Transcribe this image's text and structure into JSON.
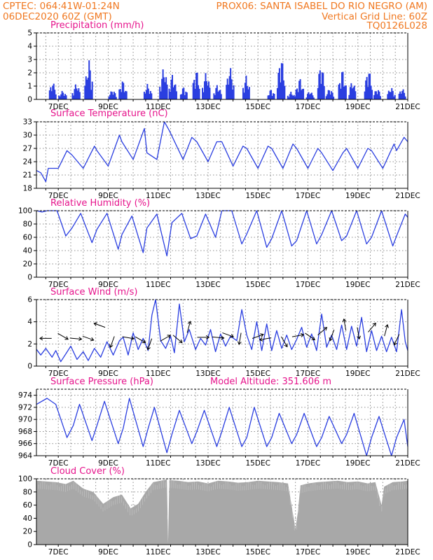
{
  "header": {
    "line1_left": "CPTEC:   064:41W-01:24N",
    "line1_right": "PROX06: SANTA ISABEL DO RIO NEGRO (AM)",
    "line2_left": "06DEC2020 60Z (GMT)",
    "line2_right": "Vertical Grid Line: 60Z",
    "line3_right": "TQ0126L028"
  },
  "colors": {
    "header_text": "#f07820",
    "panel_title": "#e6148c",
    "series_line": "#2a3ee0",
    "bar_fill": "#2a3ee0",
    "cloud_fill": "#a8a8a8",
    "grid": "#8c8c8c"
  },
  "chart_data": [
    {
      "id": "precipitation",
      "type": "bar",
      "title": "Precipitation (mm/h)",
      "ylim": [
        0,
        5
      ],
      "yticks": [
        0,
        1,
        2,
        3,
        4,
        5
      ],
      "x_range_days": [
        6.125,
        21.0
      ],
      "x_tick_labels": [
        "7DEC",
        "9DEC",
        "11DEC",
        "13DEC",
        "15DEC",
        "17DEC",
        "19DEC",
        "21DEC"
      ],
      "grid": true,
      "bursts": [
        {
          "day": 6.75,
          "peak": 1.4
        },
        {
          "day": 7.15,
          "peak": 0.7
        },
        {
          "day": 7.7,
          "peak": 1.3
        },
        {
          "day": 8.2,
          "peak": 3.1
        },
        {
          "day": 9.15,
          "peak": 0.8
        },
        {
          "day": 9.55,
          "peak": 1.5
        },
        {
          "day": 10.55,
          "peak": 1.2
        },
        {
          "day": 11.2,
          "peak": 2.6
        },
        {
          "day": 11.55,
          "peak": 2.0
        },
        {
          "day": 12.0,
          "peak": 1.0
        },
        {
          "day": 12.5,
          "peak": 2.4
        },
        {
          "day": 12.9,
          "peak": 2.2
        },
        {
          "day": 13.35,
          "peak": 1.2
        },
        {
          "day": 13.85,
          "peak": 2.6
        },
        {
          "day": 14.5,
          "peak": 1.8
        },
        {
          "day": 15.5,
          "peak": 0.8
        },
        {
          "day": 15.9,
          "peak": 3.5
        },
        {
          "day": 16.3,
          "peak": 0.6
        },
        {
          "day": 16.65,
          "peak": 1.7
        },
        {
          "day": 17.05,
          "peak": 0.7
        },
        {
          "day": 17.5,
          "peak": 2.9
        },
        {
          "day": 17.85,
          "peak": 0.9
        },
        {
          "day": 18.35,
          "peak": 2.4
        },
        {
          "day": 18.75,
          "peak": 1.5
        },
        {
          "day": 19.4,
          "peak": 2.5
        },
        {
          "day": 19.75,
          "peak": 0.9
        },
        {
          "day": 20.3,
          "peak": 1.0
        },
        {
          "day": 20.75,
          "peak": 0.9
        }
      ]
    },
    {
      "id": "surface_temperature",
      "type": "line",
      "title": "Surface Temperature (nC)",
      "ylim": [
        18,
        33
      ],
      "yticks": [
        18,
        21,
        24,
        27,
        30,
        33
      ],
      "x_range_days": [
        6.125,
        21.0
      ],
      "x_tick_labels": [
        "7DEC",
        "9DEC",
        "11DEC",
        "13DEC",
        "15DEC",
        "17DEC",
        "19DEC",
        "21DEC"
      ],
      "grid": true,
      "x": [
        6.13,
        6.3,
        6.5,
        6.6,
        7.0,
        7.35,
        7.55,
        8.0,
        8.45,
        8.55,
        9.0,
        9.45,
        9.55,
        10.0,
        10.45,
        10.55,
        10.95,
        11.25,
        11.45,
        12.0,
        12.35,
        12.55,
        13.0,
        13.35,
        13.55,
        14.0,
        14.4,
        14.55,
        15.0,
        15.4,
        15.55,
        16.0,
        16.4,
        16.55,
        17.0,
        17.4,
        17.55,
        18.0,
        18.4,
        18.55,
        19.0,
        19.4,
        19.55,
        20.0,
        20.45,
        20.55,
        20.85,
        21.0
      ],
      "y": [
        22,
        21.5,
        19.5,
        22.5,
        22.5,
        26.5,
        25.5,
        22.5,
        27.5,
        26.5,
        23,
        30,
        28.5,
        24.5,
        31.5,
        26,
        24.5,
        33,
        31,
        24.5,
        29.5,
        28.5,
        24,
        28.5,
        28.5,
        23,
        27.5,
        27,
        22.5,
        27.5,
        27,
        22.5,
        28,
        27,
        22.5,
        27,
        26,
        22,
        26,
        27,
        22.5,
        27,
        26.5,
        22.5,
        28,
        26.5,
        29.5,
        28.5
      ]
    },
    {
      "id": "relative_humidity",
      "type": "line",
      "title": "Relative Humidity (%)",
      "ylim": [
        0,
        100
      ],
      "yticks": [
        0,
        20,
        40,
        60,
        80,
        100
      ],
      "x_range_days": [
        6.125,
        21.0
      ],
      "x_tick_labels": [
        "7DEC",
        "9DEC",
        "11DEC",
        "13DEC",
        "15DEC",
        "17DEC",
        "19DEC",
        "21DEC"
      ],
      "grid": true,
      "x": [
        6.13,
        6.35,
        6.55,
        6.95,
        7.3,
        7.55,
        7.9,
        8.35,
        8.55,
        8.95,
        9.4,
        9.55,
        9.95,
        10.4,
        10.55,
        10.95,
        11.35,
        11.55,
        11.95,
        12.3,
        12.55,
        12.9,
        13.3,
        13.55,
        13.95,
        14.35,
        14.55,
        14.95,
        15.35,
        15.55,
        15.95,
        16.35,
        16.55,
        16.95,
        17.35,
        17.55,
        17.95,
        18.35,
        18.55,
        18.95,
        19.35,
        19.55,
        19.95,
        20.4,
        20.55,
        20.9,
        21.0
      ],
      "y": [
        100,
        98,
        100,
        100,
        62,
        74,
        96,
        52,
        72,
        96,
        42,
        64,
        92,
        37,
        74,
        95,
        32,
        82,
        96,
        58,
        62,
        95,
        60,
        100,
        100,
        50,
        65,
        100,
        45,
        58,
        100,
        47,
        55,
        100,
        50,
        64,
        100,
        55,
        62,
        100,
        50,
        60,
        100,
        47,
        62,
        95,
        90
      ]
    },
    {
      "id": "surface_wind",
      "type": "line",
      "title": "Surface Wind (m/s)",
      "ylim": [
        0,
        6
      ],
      "yticks": [
        0,
        2,
        4,
        6
      ],
      "x_range_days": [
        6.125,
        21.0
      ],
      "x_tick_labels": [
        "7DEC",
        "9DEC",
        "11DEC",
        "13DEC",
        "15DEC",
        "17DEC",
        "19DEC",
        "21DEC"
      ],
      "grid": true,
      "x": [
        6.13,
        6.3,
        6.5,
        6.75,
        6.9,
        7.1,
        7.3,
        7.5,
        7.75,
        8.0,
        8.2,
        8.45,
        8.7,
        8.95,
        9.2,
        9.45,
        9.6,
        9.8,
        10.0,
        10.2,
        10.4,
        10.6,
        10.75,
        10.9,
        11.1,
        11.3,
        11.5,
        11.65,
        11.85,
        12.05,
        12.25,
        12.5,
        12.7,
        12.9,
        13.1,
        13.3,
        13.5,
        13.7,
        13.9,
        14.15,
        14.35,
        14.55,
        14.75,
        14.95,
        15.15,
        15.35,
        15.55,
        15.75,
        15.95,
        16.15,
        16.35,
        16.55,
        16.75,
        16.95,
        17.15,
        17.35,
        17.55,
        17.75,
        17.95,
        18.15,
        18.35,
        18.55,
        18.75,
        18.95,
        19.15,
        19.35,
        19.55,
        19.75,
        19.95,
        20.15,
        20.35,
        20.55,
        20.75,
        20.9,
        21.0
      ],
      "y": [
        1.5,
        1.0,
        1.6,
        0.8,
        1.4,
        0.4,
        1.1,
        1.8,
        0.6,
        1.3,
        0.5,
        1.6,
        0.8,
        2.2,
        1.0,
        2.3,
        2.6,
        1.0,
        3.0,
        1.5,
        2.5,
        1.4,
        4.6,
        6.0,
        2.3,
        1.6,
        2.7,
        1.2,
        5.6,
        2.2,
        3.3,
        1.5,
        2.5,
        1.9,
        3.3,
        1.3,
        2.9,
        1.8,
        2.7,
        2.3,
        5.1,
        2.8,
        1.5,
        4.0,
        1.4,
        3.8,
        1.4,
        3.2,
        1.6,
        2.8,
        1.5,
        2.4,
        3.5,
        1.7,
        2.9,
        1.4,
        4.7,
        1.7,
        2.8,
        1.5,
        3.7,
        1.5,
        3.6,
        1.8,
        4.4,
        1.3,
        3.2,
        1.4,
        2.7,
        1.3,
        2.6,
        1.3,
        5.1,
        2.2,
        1.4
      ]
    },
    {
      "id": "surface_pressure",
      "type": "line",
      "title": "Surface Pressure (hPa)",
      "annotation": "Model Altitude: 351.606 m",
      "ylim": [
        964,
        975
      ],
      "yticks": [
        964,
        966,
        968,
        970,
        972,
        974
      ],
      "x_range_days": [
        6.125,
        21.0
      ],
      "x_tick_labels": [
        "7DEC",
        "9DEC",
        "11DEC",
        "13DEC",
        "15DEC",
        "17DEC",
        "19DEC",
        "21DEC"
      ],
      "grid": true,
      "x": [
        6.13,
        6.55,
        6.9,
        7.35,
        7.6,
        7.85,
        8.35,
        8.55,
        8.85,
        9.4,
        9.6,
        9.85,
        10.4,
        10.6,
        10.85,
        11.35,
        11.55,
        11.85,
        12.35,
        12.55,
        12.85,
        13.35,
        13.55,
        13.85,
        14.35,
        14.55,
        14.85,
        15.35,
        15.55,
        15.85,
        16.35,
        16.55,
        16.85,
        17.35,
        17.55,
        17.85,
        18.35,
        18.55,
        18.85,
        19.35,
        19.55,
        19.85,
        20.35,
        20.55,
        20.85,
        21.0
      ],
      "y": [
        972.5,
        973.5,
        972.5,
        967.0,
        969.0,
        972.5,
        966.5,
        969.0,
        973.0,
        966.0,
        968.5,
        973.5,
        965.5,
        968.5,
        972.0,
        964.5,
        967.5,
        971.5,
        966.0,
        968.0,
        971.5,
        965.5,
        968.0,
        972.0,
        965.5,
        967.0,
        972.0,
        965.5,
        967.0,
        971.0,
        966.0,
        967.5,
        971.0,
        965.5,
        967.0,
        970.5,
        966.0,
        967.5,
        971.0,
        964.0,
        967.0,
        970.5,
        964.0,
        967.0,
        970.0,
        965.5
      ]
    },
    {
      "id": "cloud_cover",
      "type": "area",
      "title": "Cloud Cover (%)",
      "ylim": [
        0,
        100
      ],
      "yticks": [
        0,
        20,
        40,
        60,
        80,
        100
      ],
      "x_range_days": [
        6.125,
        21.0
      ],
      "x_tick_labels": [
        "7DEC",
        "9DEC",
        "11DEC",
        "13DEC",
        "15DEC",
        "17DEC",
        "19DEC",
        "21DEC"
      ],
      "grid": true,
      "x": [
        6.13,
        6.5,
        6.9,
        7.3,
        7.6,
        8.0,
        8.4,
        8.8,
        9.2,
        9.55,
        9.9,
        10.2,
        10.5,
        10.8,
        11.1,
        11.35,
        11.4,
        11.45,
        11.8,
        12.2,
        12.6,
        13.0,
        13.4,
        13.8,
        14.2,
        14.6,
        15.0,
        15.4,
        15.8,
        16.2,
        16.5,
        16.6,
        16.7,
        17.0,
        17.4,
        17.8,
        18.2,
        18.6,
        19.0,
        19.4,
        19.7,
        19.95,
        20.05,
        20.4,
        20.8,
        21.0
      ],
      "y": [
        97,
        96,
        95,
        92,
        97,
        85,
        80,
        62,
        72,
        76,
        55,
        62,
        80,
        95,
        97,
        99,
        2,
        98,
        97,
        95,
        96,
        93,
        97,
        96,
        94,
        95,
        97,
        96,
        95,
        93,
        24,
        50,
        90,
        93,
        95,
        96,
        97,
        95,
        96,
        93,
        95,
        60,
        88,
        95,
        96,
        97
      ]
    }
  ],
  "wind_arrows": [
    {
      "day": 6.6,
      "y": 2.5,
      "dir": 270
    },
    {
      "day": 7.1,
      "y": 2.8,
      "dir": 120
    },
    {
      "day": 7.6,
      "y": 2.5,
      "dir": 95
    },
    {
      "day": 8.1,
      "y": 2.6,
      "dir": 110
    },
    {
      "day": 8.75,
      "y": 3.6,
      "dir": 290
    },
    {
      "day": 9.2,
      "y": 2.4,
      "dir": 200
    },
    {
      "day": 9.7,
      "y": 2.6,
      "dir": 100
    },
    {
      "day": 10.2,
      "y": 2.5,
      "dir": 120
    },
    {
      "day": 10.7,
      "y": 2.2,
      "dir": 200
    },
    {
      "day": 11.2,
      "y": 2.4,
      "dir": 60
    },
    {
      "day": 11.7,
      "y": 2.6,
      "dir": 130
    },
    {
      "day": 12.2,
      "y": 3.3,
      "dir": 15
    },
    {
      "day": 12.7,
      "y": 2.6,
      "dir": 90
    },
    {
      "day": 13.3,
      "y": 2.6,
      "dir": 95
    },
    {
      "day": 13.7,
      "y": 2.9,
      "dir": 110
    },
    {
      "day": 14.3,
      "y": 2.7,
      "dir": 190
    },
    {
      "day": 14.9,
      "y": 2.6,
      "dir": 70
    },
    {
      "day": 15.4,
      "y": 2.5,
      "dir": 260
    },
    {
      "day": 16.0,
      "y": 2.4,
      "dir": 150
    },
    {
      "day": 16.5,
      "y": 2.7,
      "dir": 80
    },
    {
      "day": 17.0,
      "y": 2.8,
      "dir": 125
    },
    {
      "day": 17.5,
      "y": 3.0,
      "dir": 50
    },
    {
      "day": 18.0,
      "y": 3.0,
      "dir": 200
    },
    {
      "day": 18.5,
      "y": 3.5,
      "dir": 350
    },
    {
      "day": 19.0,
      "y": 3.2,
      "dir": 170
    },
    {
      "day": 19.5,
      "y": 3.3,
      "dir": 40
    },
    {
      "day": 20.1,
      "y": 3.0,
      "dir": 15
    },
    {
      "day": 20.6,
      "y": 2.6,
      "dir": 205
    }
  ]
}
